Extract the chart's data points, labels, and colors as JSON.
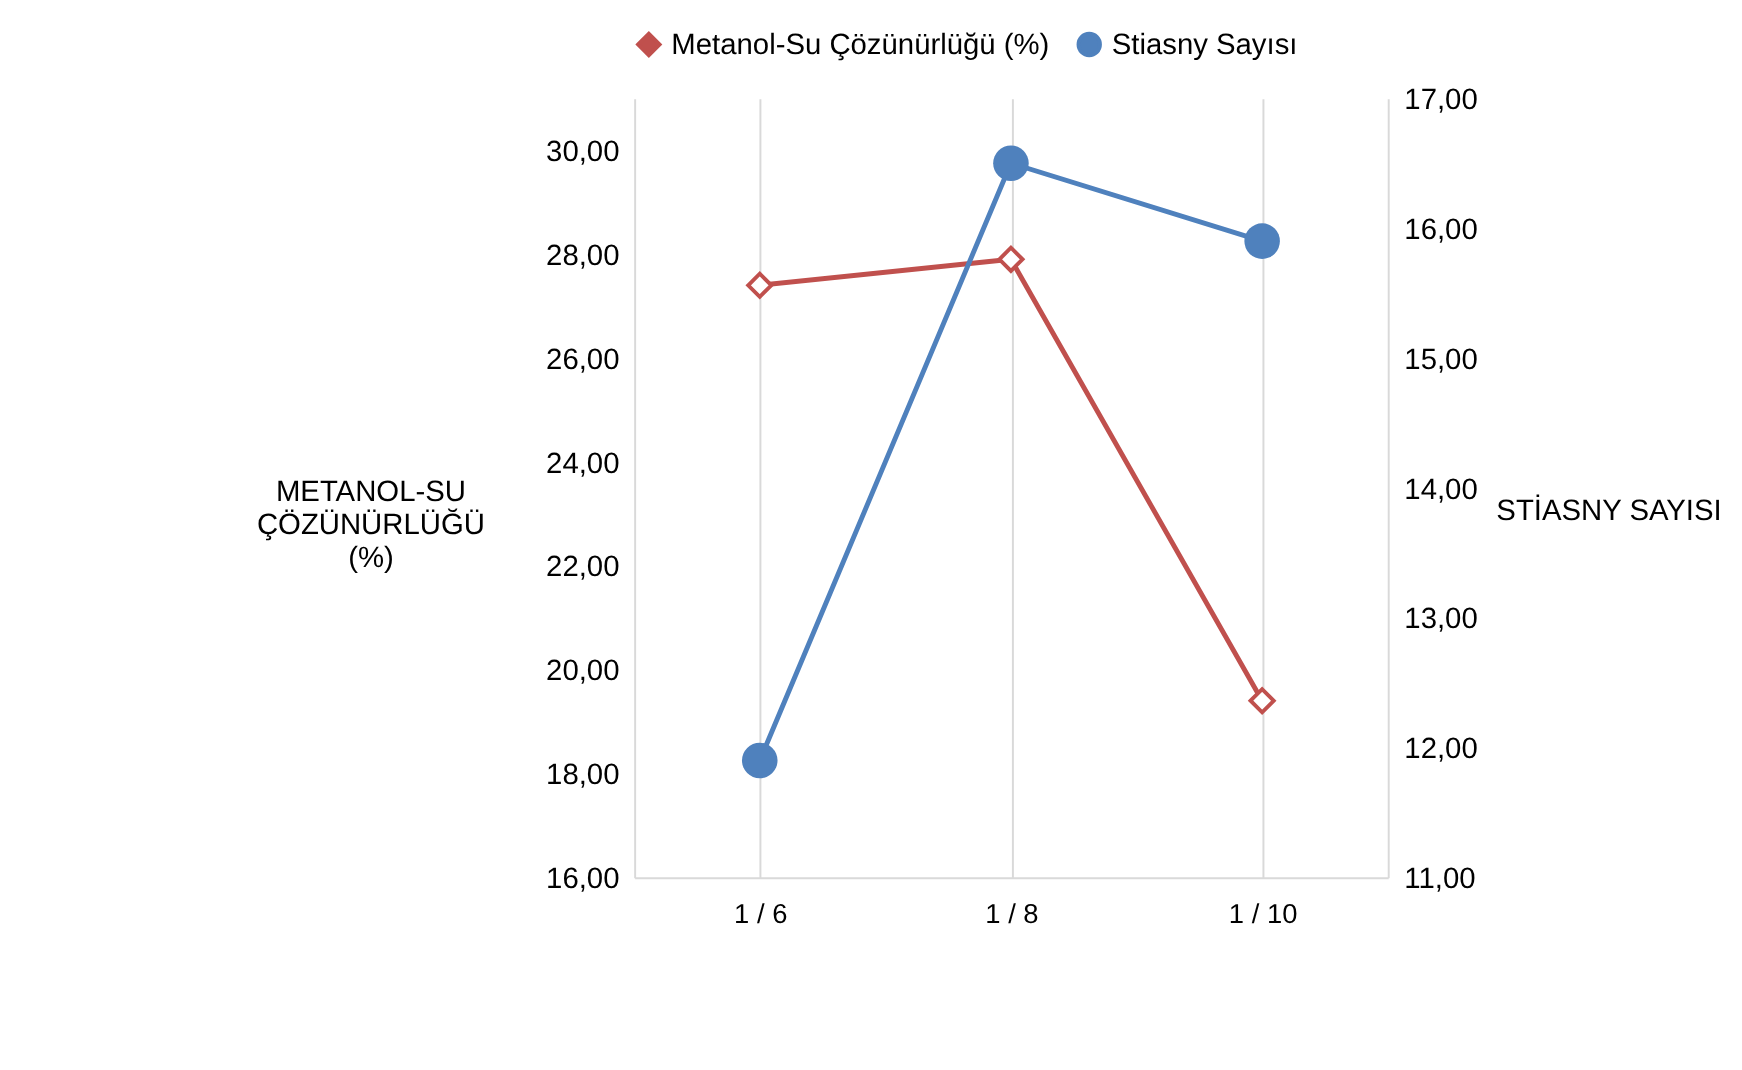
{
  "chart_data": {
    "type": "line",
    "categories": [
      "1 / 6",
      "1 / 8",
      "1 / 10"
    ],
    "ylabel": "METANOL-SU ÇÖZÜNÜRLÜĞÜ (%)",
    "y2label": "STİASNY SAYISI",
    "ylim": [
      16,
      31
    ],
    "yticks": [
      {
        "value": 16,
        "label": "16,00"
      },
      {
        "value": 18,
        "label": "18,00"
      },
      {
        "value": 20,
        "label": "20,00"
      },
      {
        "value": 22,
        "label": "22,00"
      },
      {
        "value": 24,
        "label": "24,00"
      },
      {
        "value": 26,
        "label": "26,00"
      },
      {
        "value": 28,
        "label": "28,00"
      },
      {
        "value": 30,
        "label": "30,00"
      }
    ],
    "y2lim": [
      11,
      17
    ],
    "y2ticks": [
      {
        "value": 11,
        "label": "11,00"
      },
      {
        "value": 12,
        "label": "12,00"
      },
      {
        "value": 13,
        "label": "13,00"
      },
      {
        "value": 14,
        "label": "14,00"
      },
      {
        "value": 15,
        "label": "15,00"
      },
      {
        "value": 16,
        "label": "16,00"
      },
      {
        "value": 17,
        "label": "17,00"
      }
    ],
    "series": [
      {
        "name": "Metanol-Su Çözünürlüğü (%)",
        "color": "#c0504d",
        "values": [
          27.4,
          27.9,
          19.4
        ],
        "marker": "diamond"
      },
      {
        "name": "Stiasny Sayısı",
        "color": "#4f81bd",
        "values": [
          11.9,
          16.5,
          15.9
        ],
        "axis": "y2",
        "marker": "circle"
      }
    ],
    "grid": "x",
    "legend": "top",
    "line_style": "solid"
  }
}
